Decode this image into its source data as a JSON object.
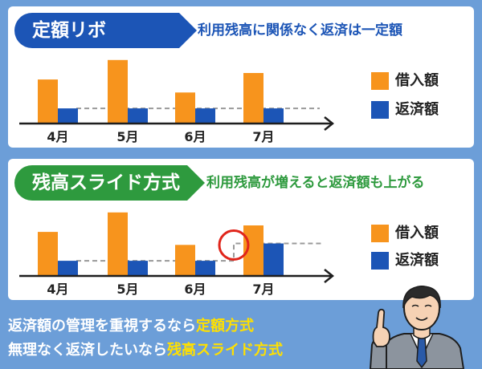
{
  "colors": {
    "borrowed": "#f7941d",
    "repayment": "#1c55b6",
    "fixed_theme": "#1c55b6",
    "sliding_theme": "#2e9a3e",
    "highlight": "#ffe000",
    "marker_circle": "#e0251b",
    "background": "#6c9ed8"
  },
  "panel_fixed": {
    "title": "定額リボ",
    "subtitle": "利用残高に関係なく返済は一定額"
  },
  "panel_sliding": {
    "title": "残高スライド方式",
    "subtitle": "利用残高が増えると返済額も上がる"
  },
  "legend": {
    "borrowed": "借入額",
    "repayment": "返済額"
  },
  "chart_data": [
    {
      "type": "bar",
      "title": "定額リボ",
      "subtitle": "利用残高に関係なく返済は一定額",
      "categories": [
        "4月",
        "5月",
        "6月",
        "7月"
      ],
      "series": [
        {
          "name": "借入額",
          "values": [
            61,
            88,
            43,
            70
          ],
          "color": "#f7941d"
        },
        {
          "name": "返済額",
          "values": [
            21,
            21,
            21,
            21
          ],
          "color": "#1c55b6"
        }
      ],
      "ylim": [
        0,
        100
      ],
      "reference_line": 21,
      "grid": false,
      "legend": "right"
    },
    {
      "type": "bar",
      "title": "残高スライド方式",
      "subtitle": "利用残高が増えると返済額も上がる",
      "categories": [
        "4月",
        "5月",
        "6月",
        "7月"
      ],
      "series": [
        {
          "name": "借入額",
          "values": [
            61,
            88,
            43,
            70
          ],
          "color": "#f7941d"
        },
        {
          "name": "返済額",
          "values": [
            21,
            21,
            21,
            45
          ],
          "color": "#1c55b6"
        }
      ],
      "ylim": [
        0,
        100
      ],
      "step_line": [
        21,
        21,
        21,
        45
      ],
      "highlight_category": "7月",
      "grid": false,
      "legend": "right"
    }
  ],
  "footer": {
    "line1_prefix": "返済額の管理を重視するなら",
    "line1_highlight": "定額方式",
    "line2_prefix": "無理なく返済したいなら",
    "line2_highlight": "残高スライド方式"
  },
  "illustration": "businessman-pointing-finger"
}
